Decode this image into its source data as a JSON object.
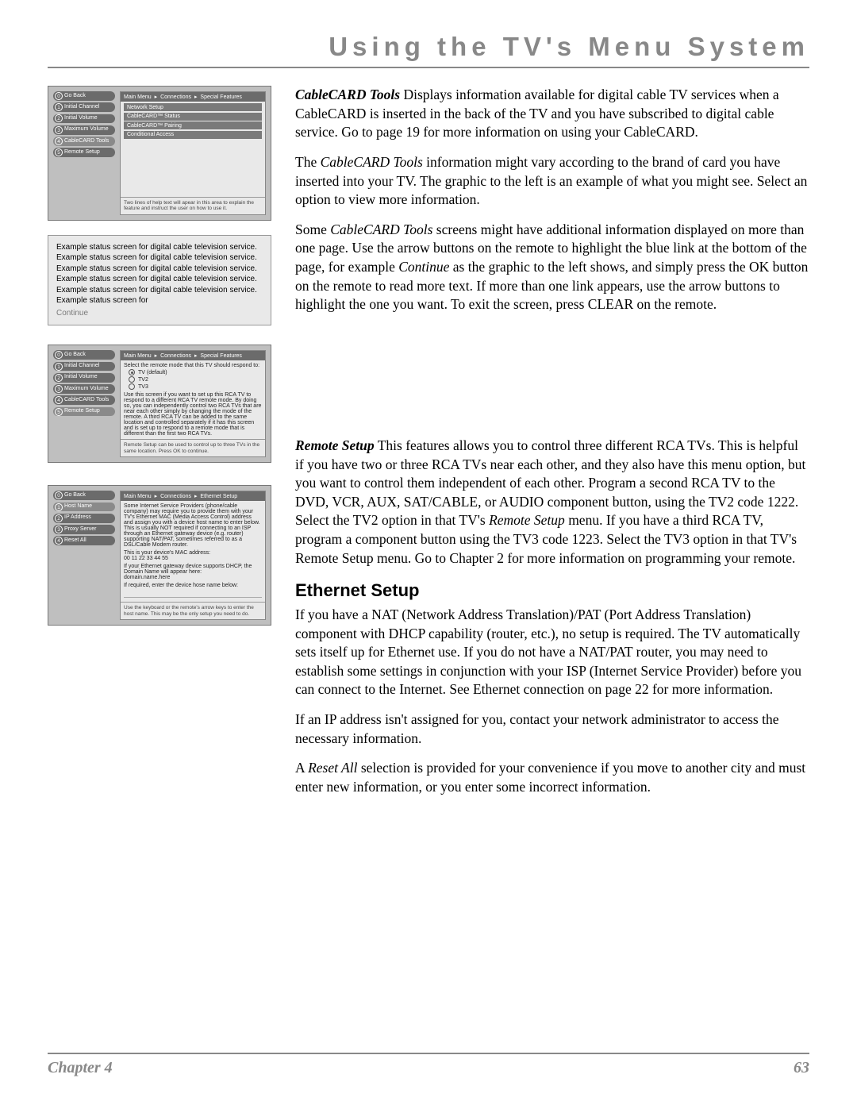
{
  "header": {
    "title": "Using the TV's Menu System"
  },
  "footer": {
    "chapter": "Chapter 4",
    "page": "63"
  },
  "shot1": {
    "crumb": [
      "Main Menu",
      "Connections",
      "Special Features"
    ],
    "side": [
      "Go Back",
      "Initial Channel",
      "Initial Volume",
      "Maximum Volume",
      "CableCARD Tools",
      "Remote Setup"
    ],
    "highlight_index": 4,
    "options": [
      "Network Setup",
      "CableCARD™ Status",
      "CableCARD™ Pairing",
      "Conditional Access"
    ],
    "hint": "Two lines of help text will apear in this area to explain the feature and instruct the user on how to use it."
  },
  "status_box": {
    "line": "Example status screen for digital cable television service.",
    "repeat": 5,
    "tail": "Example status screen for",
    "continue": "Continue"
  },
  "shot2": {
    "crumb": [
      "Main Menu",
      "Connections",
      "Special Features"
    ],
    "side": [
      "Go Back",
      "Initial Channel",
      "Initial Volume",
      "Maximum Volume",
      "CableCARD Tools",
      "Remote Setup"
    ],
    "highlight_index": 5,
    "lead": "Select the remote mode that this TV should respond to:",
    "radios": [
      {
        "label": "TV (default)",
        "on": true
      },
      {
        "label": "TV2",
        "on": false
      },
      {
        "label": "TV3",
        "on": false
      }
    ],
    "body": "Use this screen if you want to set up this RCA TV to respond to a different RCA TV remote mode. By doing so, you can independently control two RCA TVs that are near each other simply by changing the mode of the remote. A third RCA TV can be added to the same location and controlled separately if it has this screen and is set up to respond to a remote mode that is different than the first two RCA TVs.",
    "hint": "Remote Setup can be used to control up to three TVs in the same location. Press OK to continue."
  },
  "shot3": {
    "crumb": [
      "Main Menu",
      "Connections",
      "Ethernet Setup"
    ],
    "side": [
      "Go Back",
      "Host Name",
      "IP Address",
      "Proxy Server",
      "Reset All"
    ],
    "highlight_index": 1,
    "body1": "Some Internet Service Providers (phone/cable company) may require you to provide them with your TV's Ethernet MAC (Media Access Control) address and assign you with a device host name to enter below. This is usually NOT required if connecting to an ISP through an Ethernet gateway device (e.g. router) supporting NAT/PAT, sometimes referred to as a DSL/Cable Modem router.",
    "mac_label": "This is your device's MAC address:",
    "mac": "00 11 22 33 44 55",
    "body2": "If your Ethernet gateway device supports DHCP, the Domain Name will appear here:",
    "domain": "domain.name.here",
    "body3": "If required, enter the device hose name below:",
    "hint": "Use the keyboard or the remote's arrow keys to enter the host name. This may be the only setup you need to do."
  },
  "body": {
    "p1a": "CableCARD Tools",
    "p1b": "   Displays information available for digital cable TV services when a CableCARD is inserted in the back of the TV and you have subscribed to digital cable service. Go to page 19 for more information on using your CableCARD.",
    "p2a": "The ",
    "p2b": "CableCARD Tools",
    "p2c": " information might vary according to the brand of card you have inserted into your TV. The graphic to the left is an example of what you might see. Select an option to view more information.",
    "p3a": "Some ",
    "p3b": "CableCARD Tools",
    "p3c": " screens might have additional information displayed on more than one page. Use the arrow buttons on the remote to highlight the blue link at the bottom of the page, for example ",
    "p3d": "Continue",
    "p3e": " as the graphic to the left shows, and simply press the OK button on the remote to read more text. If more than one link appears, use the arrow buttons to highlight the one you want. To exit the screen, press CLEAR on the remote.",
    "p4a": "Remote Setup",
    "p4b": "   This features allows you to control three different RCA TVs. This is helpful if you have two or three RCA TVs near each other, and they also have this menu option, but you want to control them independent of each other. Program a second RCA TV to the DVD, VCR, AUX, SAT/CABLE, or AUDIO component button, using the TV2 code 1222. Select the TV2 option in that TV's ",
    "p4c": "Remote Setup",
    "p4d": " menu. If you have a third RCA TV, program a component button using the TV3 code 1223.  Select the TV3 option in that TV's Remote Setup menu. Go to Chapter 2 for more information on programming your remote.",
    "ethernet_head": "Ethernet Setup",
    "p5": "If you have a NAT (Network Address Translation)/PAT (Port Address Translation) component with DHCP capability (router, etc.), no setup is required. The TV automatically sets itself up for Ethernet use. If you do not have a NAT/PAT router, you may need to establish some settings in conjunction with your ISP (Internet Service Provider) before you can connect to the Internet. See Ethernet connection on page 22 for more information.",
    "p6": "If an IP address isn't assigned for you, contact your network administrator to access the necessary information.",
    "p7a": "A ",
    "p7b": "Reset All",
    "p7c": " selection is provided for your convenience if you move to another city and must enter new information, or you enter some incorrect information."
  },
  "colors": {
    "rule": "#888888",
    "header_text": "#888888",
    "shot_bg": "#bfbfbf",
    "pill_bg": "#6b6b6b",
    "pill_hl": "#8a8a8a",
    "panel_bg": "#e9e9e9"
  }
}
